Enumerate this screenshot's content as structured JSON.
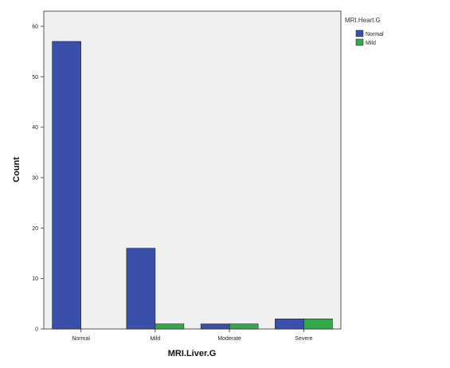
{
  "chart_data": {
    "type": "bar",
    "categories": [
      "Normal",
      "Mild",
      "Moderate",
      "Severe"
    ],
    "series": [
      {
        "name": "Normal",
        "values": [
          57,
          16,
          1,
          2
        ],
        "color": "#3a4fa8"
      },
      {
        "name": "Mild",
        "values": [
          0,
          1,
          1,
          2
        ],
        "color": "#35a84a"
      }
    ],
    "xlabel": "MRI.Liver.G",
    "ylabel": "Count",
    "ylim": [
      0,
      63
    ],
    "yticks": [
      0,
      10,
      20,
      30,
      40,
      50,
      60
    ],
    "legend_title": "MRI.Heart.G",
    "legend_position": "right",
    "grid": false,
    "plot_background": "#f0f0f0"
  }
}
